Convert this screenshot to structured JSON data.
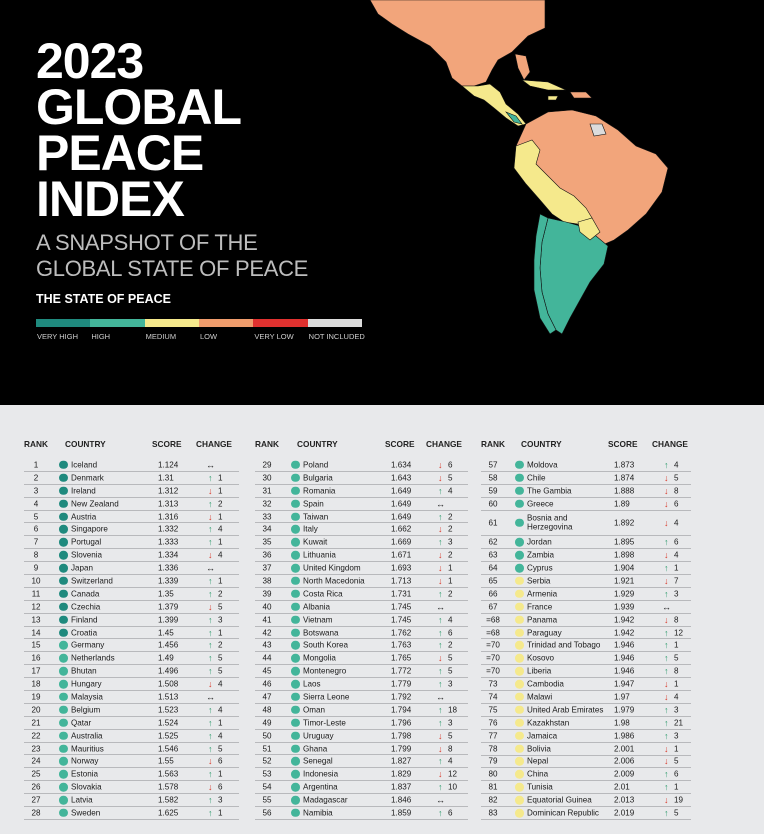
{
  "header": {
    "title_lines": [
      "2023",
      "GLOBAL",
      "PEACE",
      "INDEX"
    ],
    "subtitle_lines": [
      "A SNAPSHOT OF THE",
      "GLOBAL STATE OF PEACE"
    ],
    "legend_title": "THE STATE OF PEACE"
  },
  "legend": [
    {
      "label": "VERY HIGH",
      "color": "#1f8a7e"
    },
    {
      "label": "HIGH",
      "color": "#43b59a"
    },
    {
      "label": "MEDIUM",
      "color": "#f5e98c"
    },
    {
      "label": "LOW",
      "color": "#ef9c6c"
    },
    {
      "label": "VERY LOW",
      "color": "#e0312f"
    },
    {
      "label": "NOT INCLUDED",
      "color": "#dcdcdc"
    }
  ],
  "map_colors": {
    "north_america": "#f2a57b",
    "central_america": "#f5e98c",
    "south_america_main": "#f2a57b",
    "andes": "#f5e98c",
    "southern_cone": "#43b59a",
    "guiana": "#dcdcdc"
  },
  "table": {
    "headers": {
      "rank": "RANK",
      "country": "COUNTRY",
      "score": "SCORE",
      "change": "CHANGE"
    },
    "columns": [
      [
        {
          "rank": "1",
          "country": "Iceland",
          "score": "1.124",
          "dir": "same",
          "n": "",
          "level": "very-high"
        },
        {
          "rank": "2",
          "country": "Denmark",
          "score": "1.31",
          "dir": "up",
          "n": "1",
          "level": "very-high"
        },
        {
          "rank": "3",
          "country": "Ireland",
          "score": "1.312",
          "dir": "down",
          "n": "1",
          "level": "very-high"
        },
        {
          "rank": "4",
          "country": "New Zealand",
          "score": "1.313",
          "dir": "up",
          "n": "2",
          "level": "very-high"
        },
        {
          "rank": "5",
          "country": "Austria",
          "score": "1.316",
          "dir": "down",
          "n": "1",
          "level": "very-high"
        },
        {
          "rank": "6",
          "country": "Singapore",
          "score": "1.332",
          "dir": "up",
          "n": "4",
          "level": "very-high"
        },
        {
          "rank": "7",
          "country": "Portugal",
          "score": "1.333",
          "dir": "up",
          "n": "1",
          "level": "very-high"
        },
        {
          "rank": "8",
          "country": "Slovenia",
          "score": "1.334",
          "dir": "down",
          "n": "4",
          "level": "very-high"
        },
        {
          "rank": "9",
          "country": "Japan",
          "score": "1.336",
          "dir": "same",
          "n": "",
          "level": "very-high"
        },
        {
          "rank": "10",
          "country": "Switzerland",
          "score": "1.339",
          "dir": "up",
          "n": "1",
          "level": "very-high"
        },
        {
          "rank": "11",
          "country": "Canada",
          "score": "1.35",
          "dir": "up",
          "n": "2",
          "level": "very-high"
        },
        {
          "rank": "12",
          "country": "Czechia",
          "score": "1.379",
          "dir": "down",
          "n": "5",
          "level": "very-high"
        },
        {
          "rank": "13",
          "country": "Finland",
          "score": "1.399",
          "dir": "up",
          "n": "3",
          "level": "very-high"
        },
        {
          "rank": "14",
          "country": "Croatia",
          "score": "1.45",
          "dir": "up",
          "n": "1",
          "level": "very-high"
        },
        {
          "rank": "15",
          "country": "Germany",
          "score": "1.456",
          "dir": "up",
          "n": "2",
          "level": "high"
        },
        {
          "rank": "16",
          "country": "Netherlands",
          "score": "1.49",
          "dir": "up",
          "n": "5",
          "level": "high"
        },
        {
          "rank": "17",
          "country": "Bhutan",
          "score": "1.496",
          "dir": "up",
          "n": "5",
          "level": "high"
        },
        {
          "rank": "18",
          "country": "Hungary",
          "score": "1.508",
          "dir": "down",
          "n": "4",
          "level": "high"
        },
        {
          "rank": "19",
          "country": "Malaysia",
          "score": "1.513",
          "dir": "same",
          "n": "",
          "level": "high"
        },
        {
          "rank": "20",
          "country": "Belgium",
          "score": "1.523",
          "dir": "up",
          "n": "4",
          "level": "high"
        },
        {
          "rank": "21",
          "country": "Qatar",
          "score": "1.524",
          "dir": "up",
          "n": "1",
          "level": "high"
        },
        {
          "rank": "22",
          "country": "Australia",
          "score": "1.525",
          "dir": "up",
          "n": "4",
          "level": "high"
        },
        {
          "rank": "23",
          "country": "Mauritius",
          "score": "1.546",
          "dir": "up",
          "n": "5",
          "level": "high"
        },
        {
          "rank": "24",
          "country": "Norway",
          "score": "1.55",
          "dir": "down",
          "n": "6",
          "level": "high"
        },
        {
          "rank": "25",
          "country": "Estonia",
          "score": "1.563",
          "dir": "up",
          "n": "1",
          "level": "high"
        },
        {
          "rank": "26",
          "country": "Slovakia",
          "score": "1.578",
          "dir": "down",
          "n": "6",
          "level": "high"
        },
        {
          "rank": "27",
          "country": "Latvia",
          "score": "1.582",
          "dir": "up",
          "n": "3",
          "level": "high"
        },
        {
          "rank": "28",
          "country": "Sweden",
          "score": "1.625",
          "dir": "up",
          "n": "1",
          "level": "high"
        }
      ],
      [
        {
          "rank": "29",
          "country": "Poland",
          "score": "1.634",
          "dir": "down",
          "n": "6",
          "level": "high"
        },
        {
          "rank": "30",
          "country": "Bulgaria",
          "score": "1.643",
          "dir": "down",
          "n": "5",
          "level": "high"
        },
        {
          "rank": "31",
          "country": "Romania",
          "score": "1.649",
          "dir": "up",
          "n": "4",
          "level": "high"
        },
        {
          "rank": "32",
          "country": "Spain",
          "score": "1.649",
          "dir": "same",
          "n": "",
          "level": "high"
        },
        {
          "rank": "33",
          "country": "Taiwan",
          "score": "1.649",
          "dir": "up",
          "n": "2",
          "level": "high"
        },
        {
          "rank": "34",
          "country": "Italy",
          "score": "1.662",
          "dir": "down",
          "n": "2",
          "level": "high"
        },
        {
          "rank": "35",
          "country": "Kuwait",
          "score": "1.669",
          "dir": "up",
          "n": "3",
          "level": "high"
        },
        {
          "rank": "36",
          "country": "Lithuania",
          "score": "1.671",
          "dir": "down",
          "n": "2",
          "level": "high"
        },
        {
          "rank": "37",
          "country": "United Kingdom",
          "score": "1.693",
          "dir": "down",
          "n": "1",
          "level": "high"
        },
        {
          "rank": "38",
          "country": "North Macedonia",
          "score": "1.713",
          "dir": "down",
          "n": "1",
          "level": "high"
        },
        {
          "rank": "39",
          "country": "Costa Rica",
          "score": "1.731",
          "dir": "up",
          "n": "2",
          "level": "high"
        },
        {
          "rank": "40",
          "country": "Albania",
          "score": "1.745",
          "dir": "same",
          "n": "",
          "level": "high"
        },
        {
          "rank": "41",
          "country": "Vietnam",
          "score": "1.745",
          "dir": "up",
          "n": "4",
          "level": "high"
        },
        {
          "rank": "42",
          "country": "Botswana",
          "score": "1.762",
          "dir": "up",
          "n": "6",
          "level": "high"
        },
        {
          "rank": "43",
          "country": "South Korea",
          "score": "1.763",
          "dir": "up",
          "n": "2",
          "level": "high"
        },
        {
          "rank": "44",
          "country": "Mongolia",
          "score": "1.765",
          "dir": "down",
          "n": "5",
          "level": "high"
        },
        {
          "rank": "45",
          "country": "Montenegro",
          "score": "1.772",
          "dir": "up",
          "n": "5",
          "level": "high"
        },
        {
          "rank": "46",
          "country": "Laos",
          "score": "1.779",
          "dir": "up",
          "n": "3",
          "level": "high"
        },
        {
          "rank": "47",
          "country": "Sierra Leone",
          "score": "1.792",
          "dir": "same",
          "n": "",
          "level": "high"
        },
        {
          "rank": "48",
          "country": "Oman",
          "score": "1.794",
          "dir": "up",
          "n": "18",
          "level": "high"
        },
        {
          "rank": "49",
          "country": "Timor-Leste",
          "score": "1.796",
          "dir": "up",
          "n": "3",
          "level": "high"
        },
        {
          "rank": "50",
          "country": "Uruguay",
          "score": "1.798",
          "dir": "down",
          "n": "5",
          "level": "high"
        },
        {
          "rank": "51",
          "country": "Ghana",
          "score": "1.799",
          "dir": "down",
          "n": "8",
          "level": "high"
        },
        {
          "rank": "52",
          "country": "Senegal",
          "score": "1.827",
          "dir": "up",
          "n": "4",
          "level": "high"
        },
        {
          "rank": "53",
          "country": "Indonesia",
          "score": "1.829",
          "dir": "down",
          "n": "12",
          "level": "high"
        },
        {
          "rank": "54",
          "country": "Argentina",
          "score": "1.837",
          "dir": "up",
          "n": "10",
          "level": "high"
        },
        {
          "rank": "55",
          "country": "Madagascar",
          "score": "1.846",
          "dir": "same",
          "n": "",
          "level": "high"
        },
        {
          "rank": "56",
          "country": "Namibia",
          "score": "1.859",
          "dir": "up",
          "n": "6",
          "level": "high"
        }
      ],
      [
        {
          "rank": "57",
          "country": "Moldova",
          "score": "1.873",
          "dir": "up",
          "n": "4",
          "level": "high"
        },
        {
          "rank": "58",
          "country": "Chile",
          "score": "1.874",
          "dir": "down",
          "n": "5",
          "level": "high"
        },
        {
          "rank": "59",
          "country": "The Gambia",
          "score": "1.888",
          "dir": "down",
          "n": "8",
          "level": "high"
        },
        {
          "rank": "60",
          "country": "Greece",
          "score": "1.89",
          "dir": "down",
          "n": "6",
          "level": "high"
        },
        {
          "rank": "61",
          "country": "Bosnia and\nHerzegovina",
          "score": "1.892",
          "dir": "down",
          "n": "4",
          "level": "high",
          "tall": true
        },
        {
          "rank": "62",
          "country": "Jordan",
          "score": "1.895",
          "dir": "up",
          "n": "6",
          "level": "high"
        },
        {
          "rank": "63",
          "country": "Zambia",
          "score": "1.898",
          "dir": "down",
          "n": "4",
          "level": "high"
        },
        {
          "rank": "64",
          "country": "Cyprus",
          "score": "1.904",
          "dir": "up",
          "n": "1",
          "level": "high"
        },
        {
          "rank": "65",
          "country": "Serbia",
          "score": "1.921",
          "dir": "down",
          "n": "7",
          "level": "medium"
        },
        {
          "rank": "66",
          "country": "Armenia",
          "score": "1.929",
          "dir": "up",
          "n": "3",
          "level": "medium"
        },
        {
          "rank": "67",
          "country": "France",
          "score": "1.939",
          "dir": "same",
          "n": "",
          "level": "medium"
        },
        {
          "rank": "=68",
          "country": "Panama",
          "score": "1.942",
          "dir": "down",
          "n": "8",
          "level": "medium"
        },
        {
          "rank": "=68",
          "country": "Paraguay",
          "score": "1.942",
          "dir": "up",
          "n": "12",
          "level": "medium"
        },
        {
          "rank": "=70",
          "country": "Trinidad and Tobago",
          "score": "1.946",
          "dir": "up",
          "n": "1",
          "level": "medium"
        },
        {
          "rank": "=70",
          "country": "Kosovo",
          "score": "1.946",
          "dir": "up",
          "n": "5",
          "level": "medium"
        },
        {
          "rank": "=70",
          "country": "Liberia",
          "score": "1.946",
          "dir": "up",
          "n": "8",
          "level": "medium"
        },
        {
          "rank": "73",
          "country": "Cambodia",
          "score": "1.947",
          "dir": "down",
          "n": "1",
          "level": "medium"
        },
        {
          "rank": "74",
          "country": "Malawi",
          "score": "1.97",
          "dir": "down",
          "n": "4",
          "level": "medium"
        },
        {
          "rank": "75",
          "country": "United Arab Emirates",
          "score": "1.979",
          "dir": "up",
          "n": "3",
          "level": "medium"
        },
        {
          "rank": "76",
          "country": "Kazakhstan",
          "score": "1.98",
          "dir": "up",
          "n": "21",
          "level": "medium"
        },
        {
          "rank": "77",
          "country": "Jamaica",
          "score": "1.986",
          "dir": "up",
          "n": "3",
          "level": "medium"
        },
        {
          "rank": "78",
          "country": "Bolivia",
          "score": "2.001",
          "dir": "down",
          "n": "1",
          "level": "medium"
        },
        {
          "rank": "79",
          "country": "Nepal",
          "score": "2.006",
          "dir": "down",
          "n": "5",
          "level": "medium"
        },
        {
          "rank": "80",
          "country": "China",
          "score": "2.009",
          "dir": "up",
          "n": "6",
          "level": "medium"
        },
        {
          "rank": "81",
          "country": "Tunisia",
          "score": "2.01",
          "dir": "up",
          "n": "1",
          "level": "medium"
        },
        {
          "rank": "82",
          "country": "Equatorial Guinea",
          "score": "2.013",
          "dir": "down",
          "n": "19",
          "level": "medium"
        },
        {
          "rank": "83",
          "country": "Dominican Republic",
          "score": "2.019",
          "dir": "up",
          "n": "5",
          "level": "medium"
        }
      ]
    ]
  }
}
